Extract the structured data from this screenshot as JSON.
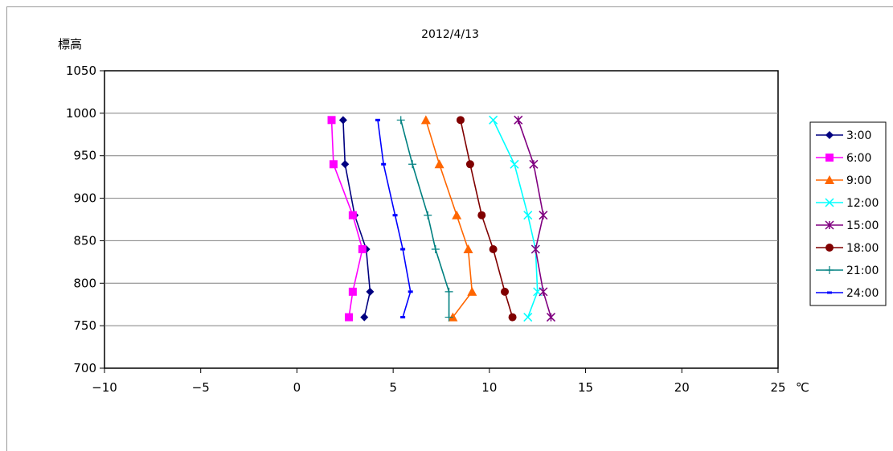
{
  "chart_data": {
    "type": "line",
    "title": "2012/4/13",
    "ylabel": "標高",
    "xlabel": "",
    "x_unit": "℃",
    "xlim": [
      -10,
      25
    ],
    "ylim": [
      700,
      1050
    ],
    "x_ticks": [
      "−10",
      "−5",
      "0",
      "5",
      "10",
      "15",
      "20",
      "25"
    ],
    "x_tick_values": [
      -10,
      -5,
      0,
      5,
      10,
      15,
      20,
      25
    ],
    "y_ticks": [
      "1050",
      "1000",
      "950",
      "900",
      "850",
      "800",
      "750",
      "700"
    ],
    "y_tick_values": [
      1050,
      1000,
      950,
      900,
      850,
      800,
      750,
      700
    ],
    "grid": "horizontal",
    "legend_position": "right",
    "y": [
      992,
      940,
      880,
      840,
      790,
      760
    ],
    "series": [
      {
        "name": "3:00",
        "color": "#000080",
        "marker": "diamond",
        "x": [
          2.4,
          2.5,
          3.0,
          3.6,
          3.8,
          3.5
        ]
      },
      {
        "name": "6:00",
        "color": "#FF00FF",
        "marker": "square",
        "x": [
          1.8,
          1.9,
          2.9,
          3.4,
          2.9,
          2.7
        ]
      },
      {
        "name": "9:00",
        "color": "#FF6600",
        "marker": "triangle",
        "x": [
          6.7,
          7.4,
          8.3,
          8.9,
          9.1,
          8.1
        ]
      },
      {
        "name": "12:00",
        "color": "#00FFFF",
        "marker": "x",
        "x": [
          10.2,
          11.3,
          12.0,
          12.4,
          12.5,
          12.0
        ]
      },
      {
        "name": "15:00",
        "color": "#800080",
        "marker": "star",
        "x": [
          11.5,
          12.3,
          12.8,
          12.4,
          12.8,
          13.2
        ]
      },
      {
        "name": "18:00",
        "color": "#800000",
        "marker": "circle",
        "x": [
          8.5,
          9.0,
          9.6,
          10.2,
          10.8,
          11.2
        ]
      },
      {
        "name": "21:00",
        "color": "#008080",
        "marker": "plus",
        "x": [
          5.4,
          6.0,
          6.8,
          7.2,
          7.9,
          7.9
        ]
      },
      {
        "name": "24:00",
        "color": "#0000FF",
        "marker": "dash",
        "x": [
          4.2,
          4.5,
          5.1,
          5.5,
          5.9,
          5.5
        ]
      }
    ]
  }
}
